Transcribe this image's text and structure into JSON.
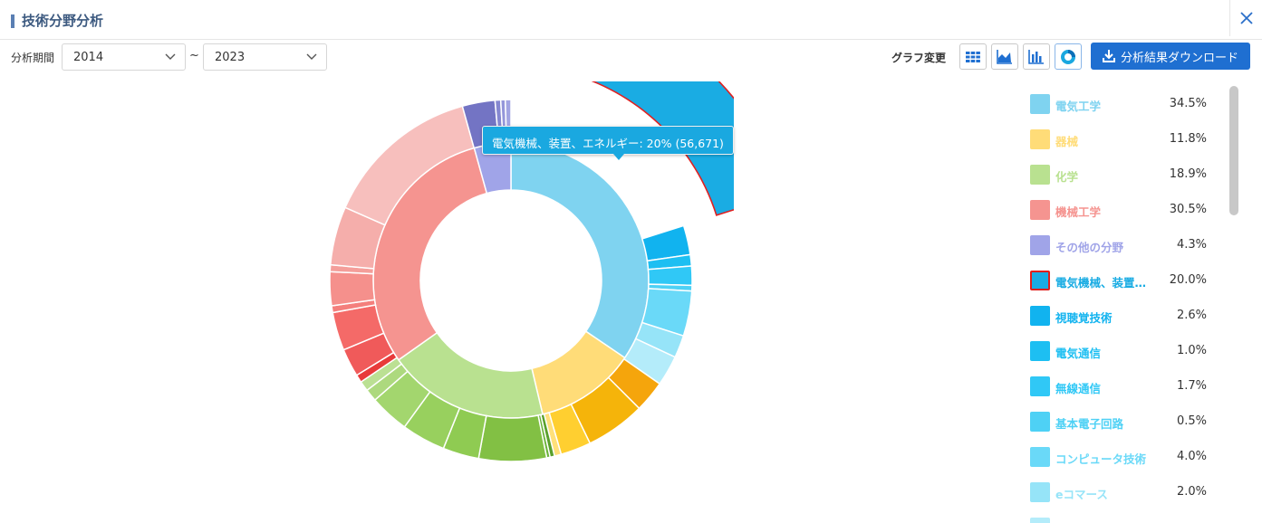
{
  "header": {
    "title": "技術分野分析"
  },
  "filters": {
    "period_label": "分析期間",
    "from": "2014",
    "to": "2023",
    "separator": "~"
  },
  "toolbar": {
    "graph_change_label": "グラフ変更",
    "download_label": "分析結果ダウンロード",
    "buttons": [
      "table-icon",
      "area-chart-icon",
      "bar-chart-icon",
      "donut-chart-icon"
    ],
    "active": "donut-chart-icon"
  },
  "tooltip": {
    "text": "電気機械、装置、エネルギー: 20% (56,671)"
  },
  "legend": [
    {
      "name": "電気工学",
      "value": "34.5%",
      "color": "#7fd3f0"
    },
    {
      "name": "器械",
      "value": "11.8%",
      "color": "#ffdc78"
    },
    {
      "name": "化学",
      "value": "18.9%",
      "color": "#b9e190"
    },
    {
      "name": "機械工学",
      "value": "30.5%",
      "color": "#f59490"
    },
    {
      "name": "その他の分野",
      "value": "4.3%",
      "color": "#a0a4e8"
    },
    {
      "name": "電気機械、装置…",
      "value": "20.0%",
      "color": "#1aace3",
      "selected": true
    },
    {
      "name": "視聴覚技術",
      "value": "2.6%",
      "color": "#11b3ef"
    },
    {
      "name": "電気通信",
      "value": "1.0%",
      "color": "#1dbff2"
    },
    {
      "name": "無線通信",
      "value": "1.7%",
      "color": "#30c8f6"
    },
    {
      "name": "基本電子回路",
      "value": "0.5%",
      "color": "#4ed1f5"
    },
    {
      "name": "コンピュータ技術",
      "value": "4.0%",
      "color": "#6ad9f8"
    },
    {
      "name": "eコマース",
      "value": "2.0%",
      "color": "#96e4f8"
    },
    {
      "name": "",
      "value": "",
      "color": "#b4ecfa"
    }
  ],
  "chart_data": {
    "type": "donut",
    "inner_ring": [
      {
        "name": "電気工学",
        "value": 34.5,
        "color": "#7fd3f0"
      },
      {
        "name": "器械",
        "value": 11.8,
        "color": "#ffdc78"
      },
      {
        "name": "化学",
        "value": 18.9,
        "color": "#b9e190"
      },
      {
        "name": "機械工学",
        "value": 30.5,
        "color": "#f59490"
      },
      {
        "name": "その他の分野",
        "value": 4.3,
        "color": "#a0a4e8"
      }
    ],
    "outer_ring": [
      {
        "name": "電気機械、装置、エネルギー",
        "value": 20.0,
        "count": 56671,
        "color": "#1aace3",
        "selected": true
      },
      {
        "name": "視聴覚技術",
        "value": 2.6,
        "color": "#11b3ef"
      },
      {
        "name": "電気通信",
        "value": 1.0,
        "color": "#1dbff2"
      },
      {
        "name": "無線通信",
        "value": 1.7,
        "color": "#30c8f6"
      },
      {
        "name": "基本電子回路",
        "value": 0.5,
        "color": "#4ed1f5"
      },
      {
        "name": "コンピュータ技術",
        "value": 4.0,
        "color": "#6ad9f8"
      },
      {
        "name": "eコマース",
        "value": 2.0,
        "color": "#96e4f8"
      },
      {
        "name": "",
        "value": 2.7,
        "color": "#b4ecfa"
      },
      {
        "name": "",
        "value": 2.8,
        "color": "#f5a50c"
      },
      {
        "name": "",
        "value": 5.3,
        "color": "#f5b40a"
      },
      {
        "name": "",
        "value": 2.7,
        "color": "#ffcf30"
      },
      {
        "name": "",
        "value": 0.6,
        "color": "#ffe07a"
      },
      {
        "name": "",
        "value": 0.4,
        "color": "#5aa02c"
      },
      {
        "name": "",
        "value": 0.3,
        "color": "#6cb33a"
      },
      {
        "name": "",
        "value": 6.0,
        "color": "#82c044"
      },
      {
        "name": "",
        "value": 3.2,
        "color": "#8fcb52"
      },
      {
        "name": "",
        "value": 3.9,
        "color": "#98d05e"
      },
      {
        "name": "",
        "value": 3.5,
        "color": "#a3d66e"
      },
      {
        "name": "",
        "value": 1.1,
        "color": "#add97e"
      },
      {
        "name": "",
        "value": 0.9,
        "color": "#bbe093"
      },
      {
        "name": "",
        "value": 0.7,
        "color": "#e83a3a"
      },
      {
        "name": "",
        "value": 2.5,
        "color": "#f05a5a"
      },
      {
        "name": "",
        "value": 3.4,
        "color": "#f46a68"
      },
      {
        "name": "",
        "value": 0.6,
        "color": "#f47f7c"
      },
      {
        "name": "",
        "value": 3.0,
        "color": "#f5908c"
      },
      {
        "name": "",
        "value": 0.6,
        "color": "#f49e9a"
      },
      {
        "name": "",
        "value": 5.2,
        "color": "#f5aeab"
      },
      {
        "name": "",
        "value": 14.0,
        "color": "#f7bfbd"
      },
      {
        "name": "",
        "value": 2.9,
        "color": "#7374c4"
      },
      {
        "name": "",
        "value": 0.5,
        "color": "#8587d0"
      },
      {
        "name": "",
        "value": 0.4,
        "color": "#9496da"
      },
      {
        "name": "",
        "value": 0.5,
        "color": "#a2a4e2"
      }
    ]
  }
}
